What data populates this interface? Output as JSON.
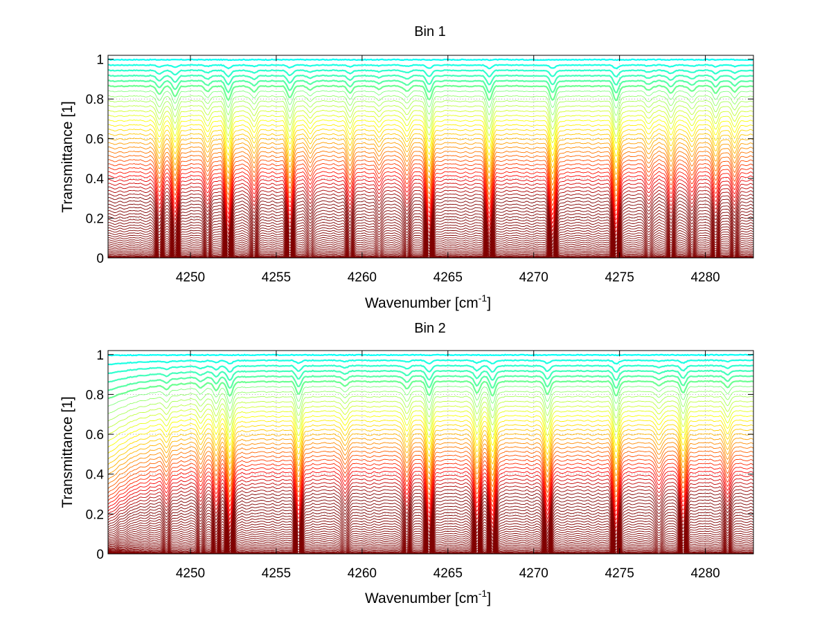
{
  "chart_data": [
    {
      "type": "line",
      "title": "Bin 1",
      "xlabel": "Wavenumber [cm",
      "xlabel_sup": "-1",
      "xlabel_suffix": "]",
      "ylabel": "Transmittance [1]",
      "xlim": [
        4245.2,
        4282.8
      ],
      "ylim": [
        0,
        1.02
      ],
      "xticks": [
        4250,
        4255,
        4260,
        4265,
        4270,
        4275,
        4280
      ],
      "yticks": [
        0,
        0.2,
        0.4,
        0.6,
        0.8,
        1
      ],
      "grid": true,
      "series_count": 60,
      "colormap": "jet (blue at top curves, deep red at lower curves)",
      "absorption_lines": [
        {
          "x": 4248.2,
          "depth": 0.55
        },
        {
          "x": 4249.1,
          "depth": 0.7
        },
        {
          "x": 4251.0,
          "depth": 0.35
        },
        {
          "x": 4252.2,
          "depth": 0.95
        },
        {
          "x": 4253.7,
          "depth": 0.4
        },
        {
          "x": 4255.8,
          "depth": 0.8
        },
        {
          "x": 4257.0,
          "depth": 0.25
        },
        {
          "x": 4259.3,
          "depth": 0.45
        },
        {
          "x": 4261.0,
          "depth": 0.2
        },
        {
          "x": 4262.6,
          "depth": 0.35
        },
        {
          "x": 4263.9,
          "depth": 0.9
        },
        {
          "x": 4267.4,
          "depth": 0.92
        },
        {
          "x": 4271.1,
          "depth": 0.95
        },
        {
          "x": 4274.8,
          "depth": 0.98
        },
        {
          "x": 4276.7,
          "depth": 0.3
        },
        {
          "x": 4278.0,
          "depth": 0.5
        },
        {
          "x": 4279.2,
          "depth": 0.35
        },
        {
          "x": 4280.6,
          "depth": 0.45
        },
        {
          "x": 4281.7,
          "depth": 0.4
        }
      ]
    },
    {
      "type": "line",
      "title": "Bin 2",
      "xlabel": "Wavenumber [cm",
      "xlabel_sup": "-1",
      "xlabel_suffix": "]",
      "ylabel": "Transmittance [1]",
      "xlim": [
        4245.2,
        4282.8
      ],
      "ylim": [
        0,
        1.02
      ],
      "xticks": [
        4250,
        4255,
        4260,
        4265,
        4270,
        4275,
        4280
      ],
      "yticks": [
        0,
        0.2,
        0.4,
        0.6,
        0.8,
        1
      ],
      "grid": true,
      "series_count": 60,
      "colormap": "jet (blue at top curves, deep red at lower curves)",
      "absorption_lines": [
        {
          "x": 4248.6,
          "depth": 0.3
        },
        {
          "x": 4250.6,
          "depth": 0.35
        },
        {
          "x": 4251.5,
          "depth": 0.5
        },
        {
          "x": 4252.3,
          "depth": 0.95
        },
        {
          "x": 4256.3,
          "depth": 0.85
        },
        {
          "x": 4259.0,
          "depth": 0.3
        },
        {
          "x": 4262.6,
          "depth": 0.5
        },
        {
          "x": 4263.9,
          "depth": 0.9
        },
        {
          "x": 4266.7,
          "depth": 0.8
        },
        {
          "x": 4267.6,
          "depth": 0.95
        },
        {
          "x": 4270.8,
          "depth": 0.88
        },
        {
          "x": 4274.8,
          "depth": 0.98
        },
        {
          "x": 4277.3,
          "depth": 0.3
        },
        {
          "x": 4278.7,
          "depth": 0.75
        },
        {
          "x": 4281.3,
          "depth": 0.4
        }
      ]
    }
  ]
}
